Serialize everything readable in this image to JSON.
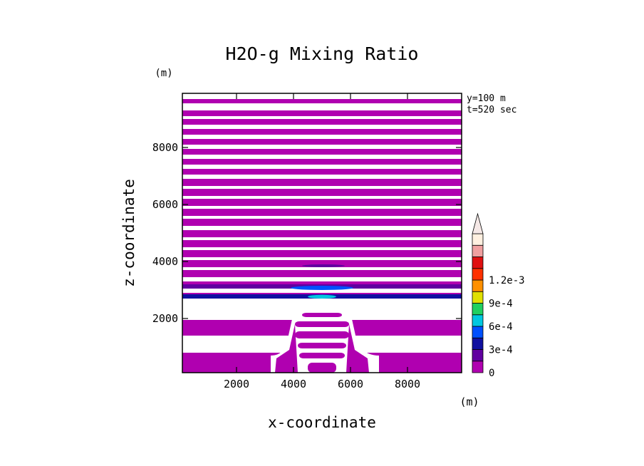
{
  "chart_data": {
    "type": "heatmap",
    "title": "H2O-g Mixing Ratio",
    "xlabel": "x-coordinate",
    "ylabel": "z-coordinate",
    "x_unit": "(m)",
    "y_unit": "(m)",
    "xlim": [
      100,
      9900
    ],
    "ylim": [
      100,
      9900
    ],
    "x_ticks": [
      2000,
      4000,
      6000,
      8000
    ],
    "y_ticks": [
      2000,
      4000,
      6000,
      8000
    ],
    "annotations": [
      "y=100 m",
      "t=520 sec"
    ],
    "colorbar": {
      "tick_labels": [
        "0",
        "3e-4",
        "6e-4",
        "9e-4",
        "1.2e-3"
      ],
      "tick_values": [
        0,
        0.0003,
        0.0006,
        0.0009,
        0.0012
      ],
      "levels": [
        0,
        0.00015,
        0.0003,
        0.00045,
        0.0006,
        0.00075,
        0.0009,
        0.00105,
        0.0012,
        0.00135
      ],
      "colors": [
        "#b000b0",
        "#6000a0",
        "#1010a0",
        "#0050ff",
        "#00c8e0",
        "#20d060",
        "#e0e000",
        "#ff9000",
        "#ff3000",
        "#e01010",
        "#f0a0a0",
        "#fff0e0"
      ]
    },
    "grid": false,
    "legend": "none",
    "upper_bands_z": [
      [
        9550,
        9700
      ],
      [
        9100,
        9300
      ],
      [
        8800,
        9000
      ],
      [
        8450,
        8650
      ],
      [
        8100,
        8300
      ],
      [
        7750,
        7950
      ],
      [
        7400,
        7600
      ],
      [
        7050,
        7250
      ],
      [
        6650,
        6900
      ],
      [
        6300,
        6550
      ],
      [
        5950,
        6200
      ],
      [
        5600,
        5850
      ],
      [
        5250,
        5500
      ],
      [
        4850,
        5100
      ],
      [
        4500,
        4750
      ],
      [
        4150,
        4400
      ],
      [
        3800,
        4050
      ],
      [
        3450,
        3700
      ],
      [
        3050,
        3300
      ],
      [
        2700,
        2900
      ]
    ],
    "lower_bands_z": [
      [
        1400,
        1950
      ],
      [
        100,
        800
      ]
    ],
    "features": [
      {
        "kind": "band",
        "value": 0.0002,
        "x": [
          100,
          9900
        ],
        "z": [
          3050,
          3200
        ]
      },
      {
        "kind": "band",
        "value": 0.0003,
        "x": [
          100,
          9900
        ],
        "z": [
          2700,
          2850
        ]
      },
      {
        "kind": "blob",
        "value": 0.00045,
        "x": [
          3900,
          6100
        ],
        "z": [
          3000,
          3150
        ]
      },
      {
        "kind": "blob",
        "value": 0.0006,
        "x": [
          4500,
          5500
        ],
        "z": [
          2700,
          2830
        ]
      },
      {
        "kind": "blob",
        "value": 0.00015,
        "x": [
          4300,
          5800
        ],
        "z": [
          3800,
          3900
        ]
      }
    ]
  }
}
